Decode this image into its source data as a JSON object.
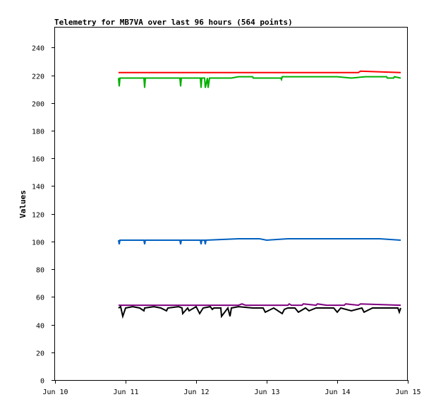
{
  "chart_data": {
    "type": "line",
    "title": "Telemetry for MB7VA over last 96 hours (564 points)",
    "xlabel": "",
    "ylabel": "Values",
    "ylim": [
      0,
      255
    ],
    "yticks": [
      0,
      20,
      40,
      60,
      80,
      100,
      120,
      140,
      160,
      180,
      200,
      220,
      240
    ],
    "xlim": [
      0,
      5
    ],
    "xticks": [
      {
        "value": 0,
        "label": "Jun 10"
      },
      {
        "value": 1,
        "label": "Jun 11"
      },
      {
        "value": 2,
        "label": "Jun 12"
      },
      {
        "value": 3,
        "label": "Jun 13"
      },
      {
        "value": 4,
        "label": "Jun 14"
      },
      {
        "value": 5,
        "label": "Jun 15"
      }
    ],
    "grid": false,
    "series": [
      {
        "color": "#ff0000",
        "x": [
          0.9,
          0.93,
          1.27,
          1.28,
          1.78,
          1.79,
          2.06,
          2.07,
          2.14,
          2.2,
          3.0,
          4.3,
          4.33,
          4.9
        ],
        "values": [
          222,
          222,
          222,
          222,
          222,
          222,
          222,
          222,
          222,
          222,
          222,
          222,
          223,
          222
        ]
      },
      {
        "color": "#00b000",
        "x": [
          0.9,
          0.91,
          0.92,
          1.26,
          1.27,
          1.28,
          1.77,
          1.78,
          1.79,
          2.06,
          2.07,
          2.08,
          2.12,
          2.13,
          2.16,
          2.17,
          2.19,
          2.2,
          2.5,
          2.6,
          2.61,
          2.8,
          2.81,
          3.0,
          3.2,
          3.21,
          3.22,
          3.5,
          3.8,
          4.0,
          4.2,
          4.4,
          4.7,
          4.71,
          4.8,
          4.81,
          4.9
        ],
        "values": [
          218,
          212,
          218,
          218,
          211,
          218,
          218,
          212,
          218,
          218,
          211,
          218,
          218,
          211,
          218,
          211,
          218,
          218,
          218,
          219,
          219,
          219,
          218,
          218,
          218,
          217,
          219,
          219,
          219,
          219,
          218,
          219,
          219,
          218,
          218,
          219,
          218
        ]
      },
      {
        "color": "#0060c0",
        "x": [
          0.9,
          0.91,
          0.92,
          1.26,
          1.27,
          1.28,
          1.77,
          1.78,
          1.79,
          2.06,
          2.07,
          2.08,
          2.12,
          2.13,
          2.14,
          2.6,
          2.9,
          3.0,
          3.3,
          3.5,
          3.8,
          4.0,
          4.3,
          4.6,
          4.9
        ],
        "values": [
          101,
          98,
          101,
          101,
          98,
          101,
          101,
          98,
          101,
          101,
          98,
          101,
          101,
          98,
          101,
          102,
          102,
          101,
          102,
          102,
          102,
          102,
          102,
          102,
          101
        ]
      },
      {
        "color": "#800080",
        "x": [
          0.9,
          2.6,
          2.65,
          2.7,
          3.0,
          3.3,
          3.32,
          3.35,
          3.5,
          3.52,
          3.7,
          3.72,
          3.85,
          4.1,
          4.12,
          4.3,
          4.33,
          4.9
        ],
        "values": [
          54,
          54,
          55,
          54,
          54,
          54,
          55,
          54,
          54,
          55,
          54,
          55,
          54,
          54,
          55,
          54,
          55,
          54
        ]
      },
      {
        "color": "#000000",
        "x": [
          0.9,
          0.93,
          0.96,
          1.0,
          1.1,
          1.2,
          1.26,
          1.27,
          1.4,
          1.5,
          1.58,
          1.6,
          1.75,
          1.8,
          1.81,
          1.88,
          1.9,
          2.0,
          2.05,
          2.1,
          2.2,
          2.23,
          2.25,
          2.35,
          2.36,
          2.45,
          2.48,
          2.5,
          2.6,
          2.8,
          2.95,
          2.98,
          3.1,
          3.22,
          3.25,
          3.3,
          3.4,
          3.45,
          3.55,
          3.6,
          3.7,
          3.8,
          3.95,
          4.0,
          4.05,
          4.2,
          4.35,
          4.38,
          4.5,
          4.6,
          4.7,
          4.8,
          4.86,
          4.88,
          4.9
        ],
        "values": [
          52,
          53,
          46,
          52,
          53,
          52,
          50,
          52,
          53,
          52,
          50,
          52,
          53,
          52,
          48,
          52,
          50,
          53,
          48,
          52,
          53,
          51,
          52,
          52,
          46,
          52,
          46,
          52,
          53,
          52,
          52,
          49,
          52,
          48,
          51,
          52,
          52,
          49,
          52,
          50,
          52,
          52,
          52,
          49,
          52,
          50,
          52,
          49,
          52,
          52,
          52,
          52,
          52,
          49,
          52
        ]
      }
    ]
  }
}
